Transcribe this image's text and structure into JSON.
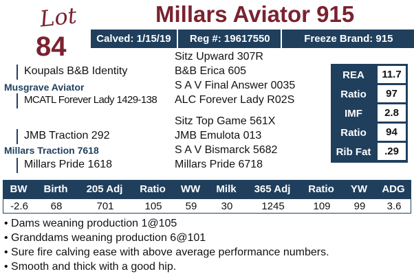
{
  "lot": {
    "word": "Lot",
    "number": "84"
  },
  "title": "Millars Aviator 915",
  "info": {
    "calved": "Calved: 1/15/19",
    "reg": "Reg #: 19617550",
    "freeze": "Freeze Brand: 915"
  },
  "pedigree": {
    "sire": "Musgrave Aviator",
    "sire_sire": "Koupals B&B Identity",
    "sire_dam": "MCATL Forever Lady 1429-138",
    "sire_sire_sire": "Sitz Upward 307R",
    "sire_sire_dam": "B&B Erica 605",
    "sire_dam_sire": "S A V Final Answer 0035",
    "sire_dam_dam": "ALC Forever Lady R02S",
    "dam": "Millars Traction 7618",
    "dam_sire": "JMB Traction 292",
    "dam_dam": "Millars Pride 1618",
    "dam_sire_sire": "Sitz Top Game 561X",
    "dam_sire_dam": "JMB Emulota 013",
    "dam_dam_sire": "S A V Bismarck 5682",
    "dam_dam_dam": "Millars Pride 6718"
  },
  "carcass": [
    {
      "label": "REA",
      "value": "11.7"
    },
    {
      "label": "Ratio",
      "value": "97"
    },
    {
      "label": "IMF",
      "value": "2.8"
    },
    {
      "label": "Ratio",
      "value": "94"
    },
    {
      "label": "Rib Fat",
      "value": ".29"
    }
  ],
  "stats": {
    "headers": [
      "BW",
      "Birth",
      "205 Adj",
      "Ratio",
      "WW",
      "Milk",
      "365 Adj",
      "Ratio",
      "YW",
      "ADG"
    ],
    "values": [
      "-2.6",
      "68",
      "701",
      "105",
      "59",
      "30",
      "1245",
      "109",
      "99",
      "3.6"
    ]
  },
  "notes": [
    "Dams weaning production 1@105",
    "Granddams weaning production 6@101",
    "Sure fire calving ease with above average performance numbers.",
    "Smooth and thick with a good hip."
  ]
}
